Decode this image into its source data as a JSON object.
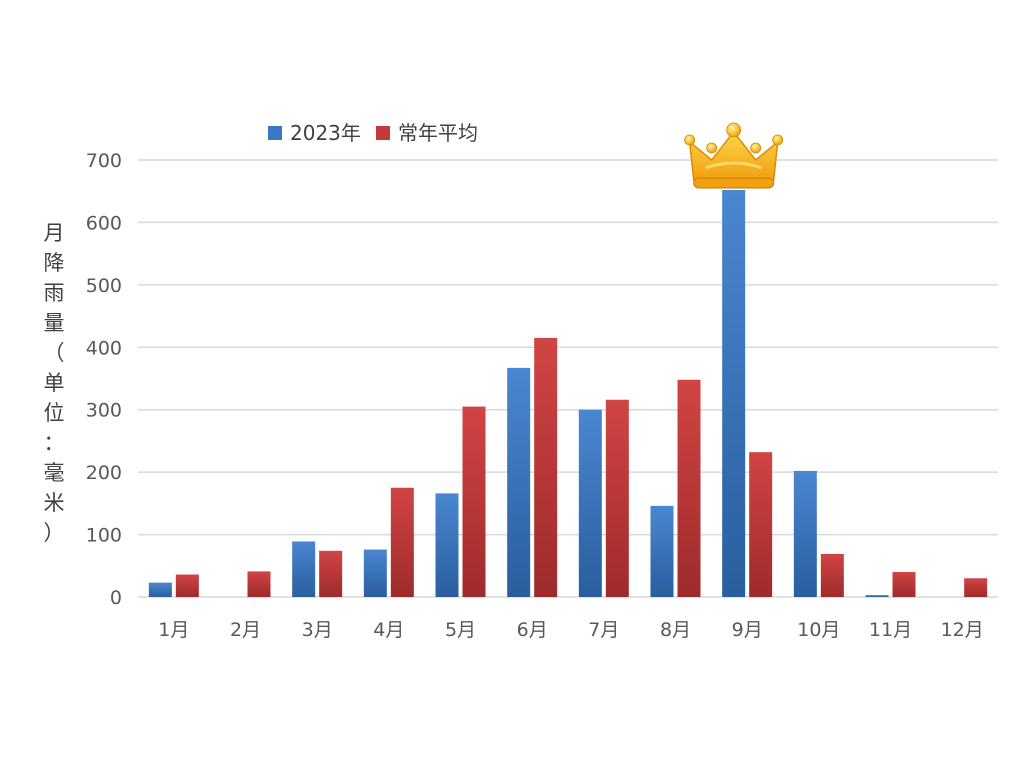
{
  "chart_data": {
    "type": "bar",
    "categories": [
      "1月",
      "2月",
      "3月",
      "4月",
      "5月",
      "6月",
      "7月",
      "8月",
      "9月",
      "10月",
      "11月",
      "12月"
    ],
    "series": [
      {
        "name": "2023年",
        "values": [
          23,
          0,
          89,
          76,
          166,
          367,
          300,
          146,
          652,
          202,
          3,
          0
        ],
        "color": "#3a78c3"
      },
      {
        "name": "常年平均",
        "values": [
          36,
          41,
          74,
          175,
          305,
          415,
          316,
          348,
          232,
          69,
          40,
          30
        ],
        "color": "#c43a3a"
      }
    ],
    "title": "",
    "xlabel": "",
    "ylabel": "月降雨量（单位：毫米）",
    "ylim": [
      0,
      700
    ],
    "yticks": [
      0,
      100,
      200,
      300,
      400,
      500,
      600,
      700
    ],
    "grid": true,
    "legend_position": "top",
    "annotation": {
      "type": "crown-icon",
      "category": "9月",
      "series": "2023年"
    }
  }
}
